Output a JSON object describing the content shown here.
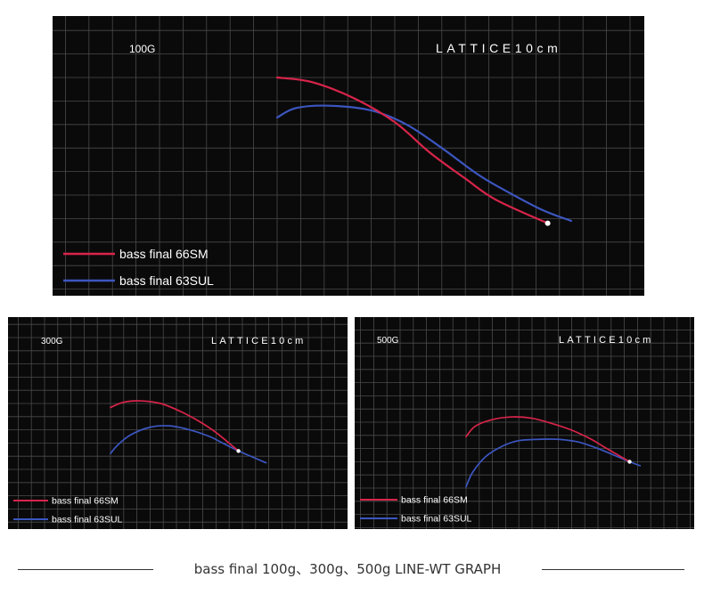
{
  "caption": "bass final 100g、300g、500g  LINE-WT GRAPH",
  "colors": {
    "background": "#0a0a0a",
    "grid": "#4a4a4a",
    "bass_final_66SM": "#d8244a",
    "bass_final_63SUL": "#3c56c0",
    "tip_marker": "#ffffff"
  },
  "chart_data": [
    {
      "type": "line",
      "load_label": "100G",
      "lattice_label": "LATTICE10cm",
      "grid": true,
      "legend_position": "bottom-left",
      "series": [
        {
          "name": "bass final 66SM",
          "x": [
            0.0,
            1.5,
            3.3,
            5.0,
            6.5,
            8.0,
            9.3,
            11.5
          ],
          "y": [
            0.0,
            -0.2,
            -0.9,
            -1.9,
            -3.2,
            -4.3,
            -5.2,
            -6.2
          ]
        },
        {
          "name": "bass final 63SUL",
          "x": [
            0.0,
            0.8,
            2.2,
            4.0,
            5.5,
            7.0,
            8.5,
            9.5,
            11.2,
            12.5
          ],
          "y": [
            -1.7,
            -1.3,
            -1.2,
            -1.4,
            -2.0,
            -3.0,
            -4.1,
            -4.7,
            -5.6,
            -6.1
          ]
        }
      ],
      "marker": {
        "x": 11.5,
        "y": -6.2
      }
    },
    {
      "type": "line",
      "load_label": "300G",
      "lattice_label": "LATTICE10cm",
      "grid": true,
      "legend_position": "bottom-left",
      "series": [
        {
          "name": "bass final 66SM",
          "x": [
            0.0,
            1.0,
            2.3,
            3.8,
            5.3,
            6.8,
            8.0,
            9.7
          ],
          "y": [
            -0.3,
            0.1,
            0.2,
            0.0,
            -0.6,
            -1.4,
            -2.2,
            -3.6
          ]
        },
        {
          "name": "bass final 63SUL",
          "x": [
            0.0,
            0.5,
            1.5,
            3.0,
            4.5,
            6.0,
            7.5,
            8.5,
            9.7,
            11.8
          ],
          "y": [
            -3.8,
            -3.2,
            -2.4,
            -1.8,
            -1.7,
            -2.0,
            -2.5,
            -3.0,
            -3.6,
            -4.5
          ]
        }
      ],
      "marker": {
        "x": 9.7,
        "y": -3.6
      }
    },
    {
      "type": "line",
      "load_label": "500G",
      "lattice_label": "LATTICE10cm",
      "grid": true,
      "legend_position": "bottom-left",
      "series": [
        {
          "name": "bass final 66SM",
          "x": [
            0.0,
            0.7,
            2.0,
            3.5,
            5.0,
            6.5,
            8.0,
            9.5,
            10.5,
            12.4
          ],
          "y": [
            -1.1,
            -0.3,
            0.2,
            0.4,
            0.3,
            -0.1,
            -0.6,
            -1.3,
            -1.9,
            -3.0
          ]
        },
        {
          "name": "bass final 63SUL",
          "x": [
            0.0,
            0.5,
            1.5,
            2.8,
            4.0,
            5.5,
            7.0,
            8.5,
            10.0,
            12.4,
            13.2
          ],
          "y": [
            -4.9,
            -3.8,
            -2.6,
            -1.8,
            -1.4,
            -1.3,
            -1.3,
            -1.5,
            -2.0,
            -3.0,
            -3.3
          ]
        }
      ],
      "marker": {
        "x": 12.4,
        "y": -3.0
      }
    }
  ]
}
